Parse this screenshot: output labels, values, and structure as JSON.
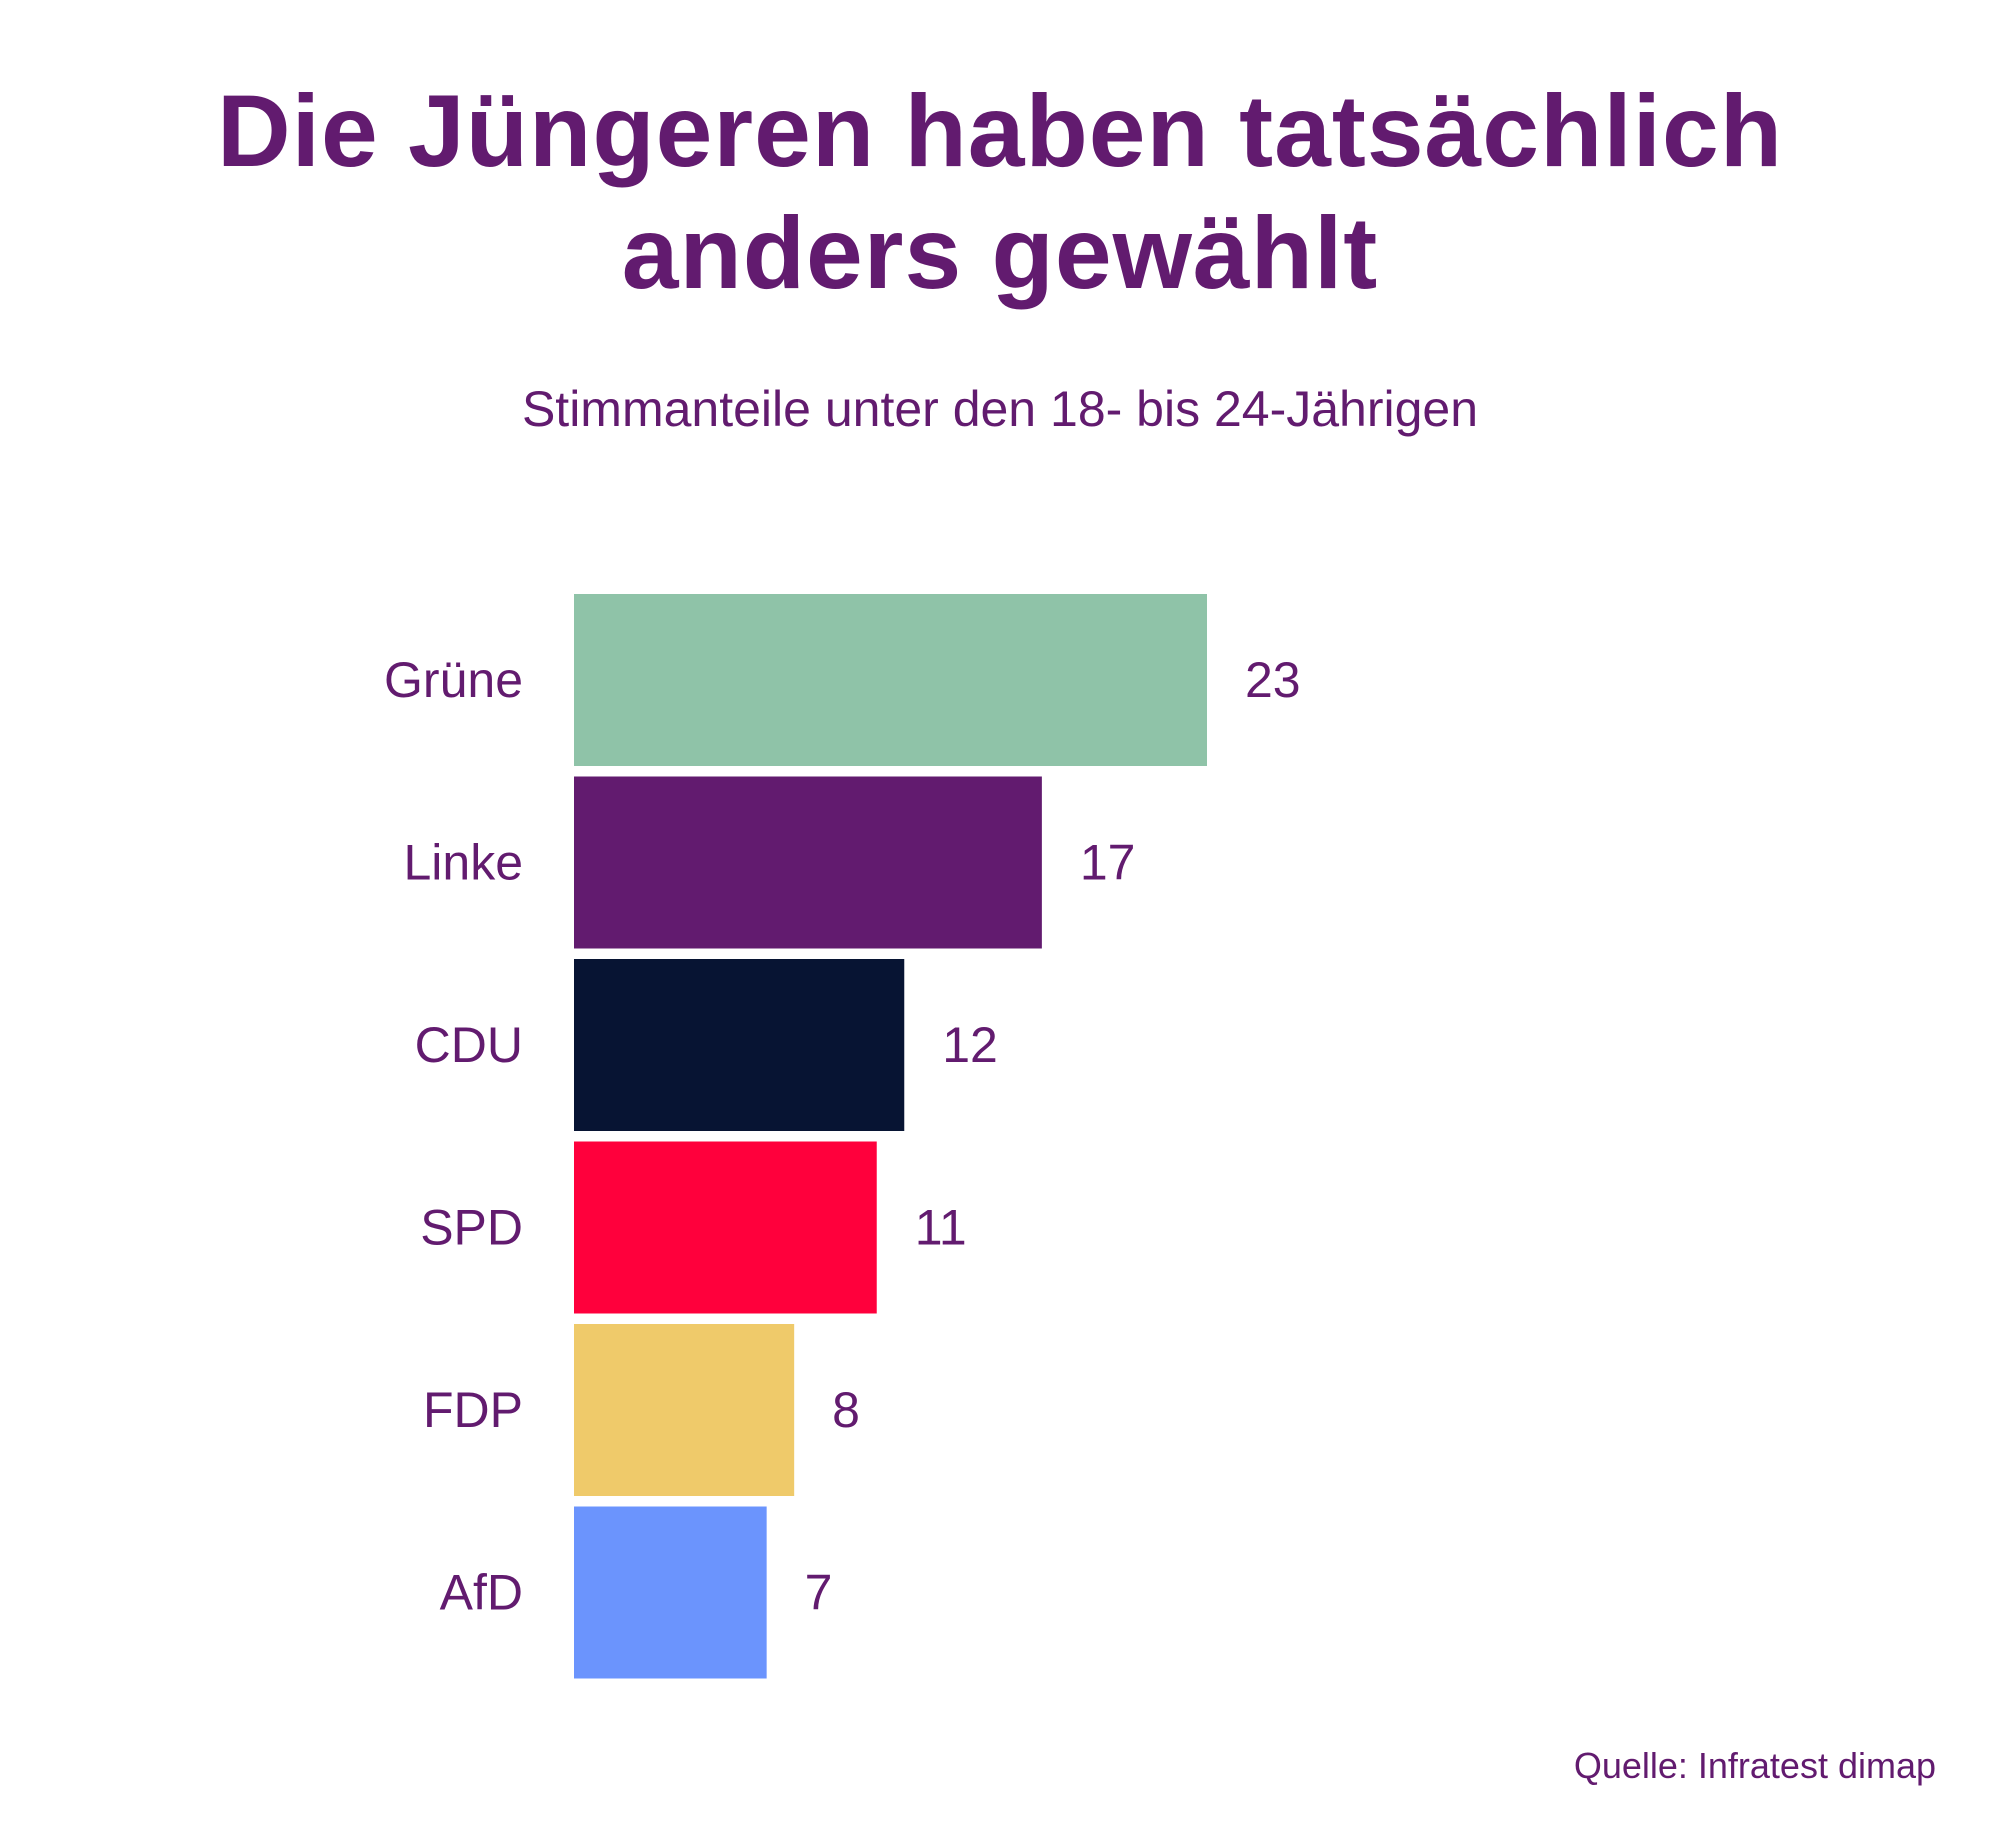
{
  "chart_data": {
    "type": "bar",
    "orientation": "horizontal",
    "title": "Die Jüngeren haben tatsächlich anders gewählt",
    "title_lines": [
      "Die Jüngeren haben tatsächlich",
      "anders gewählt"
    ],
    "subtitle": "Stimmanteile unter den 18- bis 24-Jährigen",
    "categories": [
      "Grüne",
      "Linke",
      "CDU",
      "SPD",
      "FDP",
      "AfD"
    ],
    "values": [
      23,
      17,
      12,
      11,
      8,
      7
    ],
    "colors": [
      "#8fc3a8",
      "#621b6f",
      "#071433",
      "#ff003c",
      "#efca6a",
      "#6b94fd"
    ],
    "xlabel": "",
    "ylabel": "",
    "xlim": [
      0,
      23
    ],
    "grid": false,
    "source": "Quelle: Infratest dimap"
  }
}
